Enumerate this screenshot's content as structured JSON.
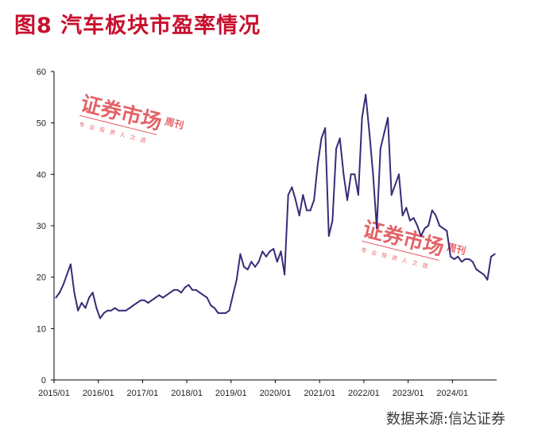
{
  "title": "图8   汽车板块市盈率情况",
  "source": "数据来源:信达证券",
  "watermark": {
    "title": "证券市场",
    "side": "周刊",
    "tagline": "专 业 投 资 人 之 选"
  },
  "colors": {
    "title": "#c8102e",
    "line": "#3b2a78",
    "watermark": "#e0484c"
  },
  "chart_data": {
    "type": "line",
    "title": "",
    "xlabel": "",
    "ylabel": "",
    "ylim": [
      0,
      60
    ],
    "yticks": [
      "0",
      "10",
      "20",
      "30",
      "40",
      "50",
      "60"
    ],
    "xticks": [
      "2015/01",
      "2016/01",
      "2017/01",
      "2018/01",
      "2019/01",
      "2020/01",
      "2021/01",
      "2022/01",
      "2023/01",
      "2024/01"
    ],
    "x_range": [
      "2015-01",
      "2024-12"
    ],
    "grid": false,
    "series": [
      {
        "name": "",
        "x": [
          "2015-01",
          "2015-02",
          "2015-03",
          "2015-04",
          "2015-05",
          "2015-06",
          "2015-07",
          "2015-08",
          "2015-09",
          "2015-10",
          "2015-11",
          "2015-12",
          "2016-01",
          "2016-02",
          "2016-03",
          "2016-04",
          "2016-05",
          "2016-06",
          "2016-07",
          "2016-08",
          "2016-09",
          "2016-10",
          "2016-11",
          "2016-12",
          "2017-01",
          "2017-02",
          "2017-03",
          "2017-04",
          "2017-05",
          "2017-06",
          "2017-07",
          "2017-08",
          "2017-09",
          "2017-10",
          "2017-11",
          "2017-12",
          "2018-01",
          "2018-02",
          "2018-03",
          "2018-04",
          "2018-05",
          "2018-06",
          "2018-07",
          "2018-08",
          "2018-09",
          "2018-10",
          "2018-11",
          "2018-12",
          "2019-01",
          "2019-02",
          "2019-03",
          "2019-04",
          "2019-05",
          "2019-06",
          "2019-07",
          "2019-08",
          "2019-09",
          "2019-10",
          "2019-11",
          "2019-12",
          "2020-01",
          "2020-02",
          "2020-03",
          "2020-04",
          "2020-05",
          "2020-06",
          "2020-07",
          "2020-08",
          "2020-09",
          "2020-10",
          "2020-11",
          "2020-12",
          "2021-01",
          "2021-02",
          "2021-03",
          "2021-04",
          "2021-05",
          "2021-06",
          "2021-07",
          "2021-08",
          "2021-09",
          "2021-10",
          "2021-11",
          "2021-12",
          "2022-01",
          "2022-02",
          "2022-03",
          "2022-04",
          "2022-05",
          "2022-06",
          "2022-07",
          "2022-08",
          "2022-09",
          "2022-10",
          "2022-11",
          "2022-12",
          "2023-01",
          "2023-02",
          "2023-03",
          "2023-04",
          "2023-05",
          "2023-06",
          "2023-07",
          "2023-08",
          "2023-09",
          "2023-10",
          "2023-11",
          "2023-12",
          "2024-01",
          "2024-02",
          "2024-03",
          "2024-04",
          "2024-05",
          "2024-06",
          "2024-07",
          "2024-08",
          "2024-09",
          "2024-10",
          "2024-11",
          "2024-12"
        ],
        "values": [
          16.0,
          17.0,
          18.5,
          20.5,
          22.5,
          17.0,
          13.5,
          15.0,
          14.0,
          16.0,
          17.0,
          14.0,
          12.0,
          13.0,
          13.5,
          13.5,
          14.0,
          13.5,
          13.5,
          13.5,
          14.0,
          14.5,
          15.0,
          15.5,
          15.5,
          15.0,
          15.5,
          16.0,
          16.5,
          16.0,
          16.5,
          17.0,
          17.5,
          17.5,
          17.0,
          18.0,
          18.5,
          17.5,
          17.5,
          17.0,
          16.5,
          16.0,
          14.5,
          14.0,
          13.0,
          13.0,
          13.0,
          13.5,
          16.5,
          19.5,
          24.5,
          22.0,
          21.5,
          23.0,
          22.0,
          23.0,
          25.0,
          24.0,
          25.0,
          25.5,
          23.0,
          25.0,
          20.5,
          36.0,
          37.5,
          35.0,
          32.0,
          36.0,
          33.0,
          33.0,
          35.0,
          42.0,
          47.0,
          49.0,
          28.0,
          31.0,
          45.0,
          47.0,
          40.0,
          35.0,
          40.0,
          40.0,
          36.0,
          51.0,
          55.5,
          48.0,
          40.0,
          29.5,
          45.0,
          48.0,
          51.0,
          36.0,
          38.0,
          40.0,
          32.0,
          33.5,
          31.0,
          31.5,
          30.0,
          28.0,
          29.5,
          30.0,
          33.0,
          32.0,
          30.0,
          29.5,
          29.0,
          24.0,
          23.5,
          24.0,
          23.0,
          23.5,
          23.5,
          23.0,
          21.5,
          21.0,
          20.5,
          19.5,
          24.0,
          24.5
        ]
      }
    ]
  }
}
